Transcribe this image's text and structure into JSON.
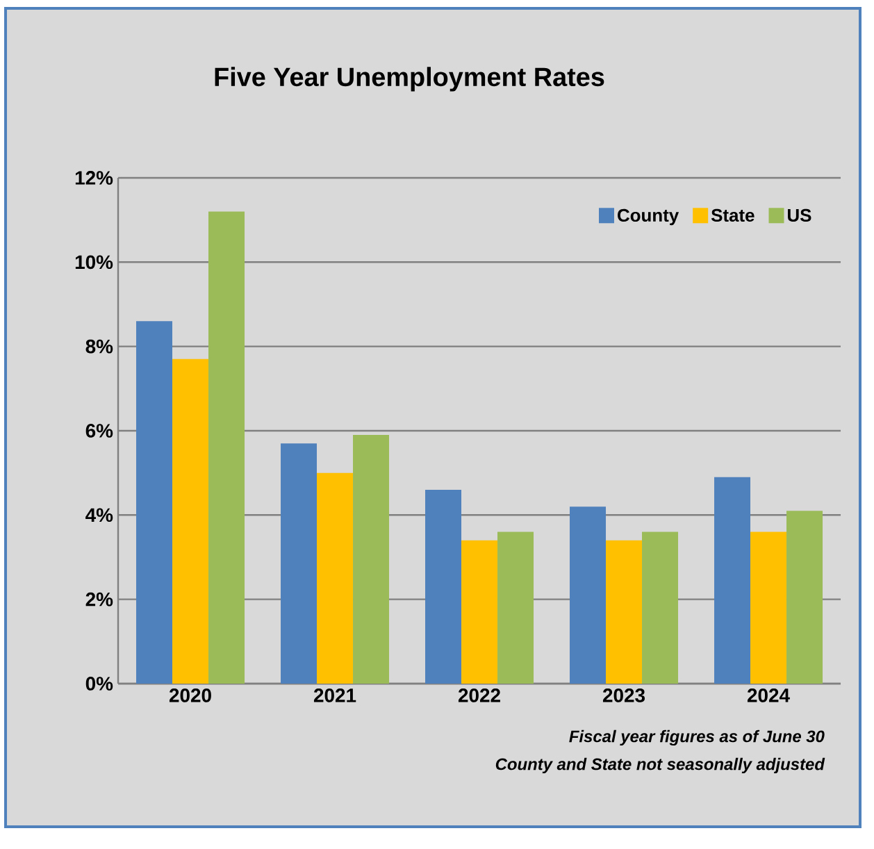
{
  "chart_data": {
    "type": "bar",
    "title": "Five Year Unemployment Rates",
    "categories": [
      "2020",
      "2021",
      "2022",
      "2023",
      "2024"
    ],
    "series": [
      {
        "name": "County",
        "color": "#4f81bd",
        "values": [
          8.6,
          5.7,
          4.6,
          4.2,
          4.9
        ]
      },
      {
        "name": "State",
        "color": "#ffc000",
        "values": [
          7.7,
          5.0,
          3.4,
          3.4,
          3.6
        ]
      },
      {
        "name": "US",
        "color": "#9bbb59",
        "values": [
          11.2,
          5.9,
          3.6,
          3.6,
          4.1
        ]
      }
    ],
    "ylim": [
      0,
      12
    ],
    "yticks": [
      {
        "value": 0,
        "label": "0%"
      },
      {
        "value": 2,
        "label": "2%"
      },
      {
        "value": 4,
        "label": "4%"
      },
      {
        "value": 6,
        "label": "6%"
      },
      {
        "value": 8,
        "label": "8%"
      },
      {
        "value": 10,
        "label": "10%"
      },
      {
        "value": 12,
        "label": "12%"
      }
    ],
    "grid": "y",
    "legend": "top right",
    "annotations": [
      "Fiscal year figures as of June 30",
      "County and State not seasonally adjusted"
    ]
  }
}
